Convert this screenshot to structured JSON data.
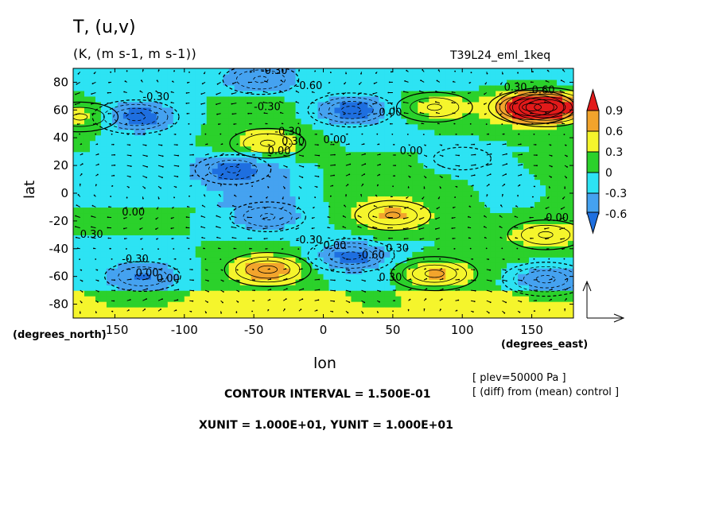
{
  "chart_data": {
    "type": "heatmap",
    "title": "T, (u,v)",
    "units": "(K, (m s-1, m s-1))",
    "run_name": "T39L24_eml_1keq",
    "xlabel": "lon",
    "ylabel": "lat",
    "x_units_label": "(degrees_east)",
    "y_units_label": "(degrees_north)",
    "xlim": [
      -180,
      180
    ],
    "ylim": [
      -90,
      90
    ],
    "x_ticks": [
      -150,
      -100,
      -50,
      0,
      50,
      100,
      150
    ],
    "y_ticks": [
      80,
      60,
      40,
      20,
      0,
      -20,
      -40,
      -60,
      -80
    ],
    "colorbar": {
      "labels": [
        "0.9",
        "0.6",
        "0.3",
        "0",
        "-0.3",
        "-0.6"
      ],
      "levels": [
        -0.9,
        -0.6,
        -0.3,
        0,
        0.3,
        0.6,
        0.9
      ],
      "colors": [
        "#1e6fe0",
        "#45a2f0",
        "#2de3f3",
        "#2bd12b",
        "#f5f52c",
        "#f2a42c",
        "#e21a1a"
      ]
    },
    "contour_labels": [
      "-0.30",
      "-0.60",
      "-0.30",
      "-0.30",
      "-0.30",
      "0.00",
      "0.30",
      "0.60",
      "0.00",
      "0.30",
      "0.00",
      "0.00",
      "0.00",
      "-0.30",
      "0.00",
      "0.00",
      "-0.30",
      "0.00",
      "-0.60",
      "0.30",
      "0.30",
      "0.00",
      "0.30"
    ],
    "anomaly_centers": [
      {
        "lon": -135,
        "lat": 55,
        "value": -0.6
      },
      {
        "lon": -45,
        "lat": 82,
        "value": -0.45
      },
      {
        "lon": 20,
        "lat": 60,
        "value": -0.6
      },
      {
        "lon": 160,
        "lat": 62,
        "value": 0.9
      },
      {
        "lon": 150,
        "lat": 62,
        "value": 0.6
      },
      {
        "lon": 80,
        "lat": 62,
        "value": 0.45
      },
      {
        "lon": -40,
        "lat": 36,
        "value": 0.45
      },
      {
        "lon": 50,
        "lat": -16,
        "value": 0.45
      },
      {
        "lon": -65,
        "lat": 17,
        "value": -0.45
      },
      {
        "lon": -40,
        "lat": -17,
        "value": -0.45
      },
      {
        "lon": -40,
        "lat": -55,
        "value": 0.6
      },
      {
        "lon": 20,
        "lat": -45,
        "value": -0.6
      },
      {
        "lon": 160,
        "lat": -62,
        "value": -0.6
      },
      {
        "lon": -130,
        "lat": -60,
        "value": -0.45
      },
      {
        "lon": 160,
        "lat": -30,
        "value": 0.45
      },
      {
        "lon": 80,
        "lat": -58,
        "value": 0.6
      },
      {
        "lon": 100,
        "lat": 25,
        "value": -0.3
      },
      {
        "lon": -175,
        "lat": 55,
        "value": 0.45
      }
    ],
    "vector_reference": "arrows showing (u,v) wind difference"
  },
  "annotations": {
    "plev": "[ plev=50000 Pa ]",
    "diff": "[ (diff) from (mean) control ]",
    "contour_interval": "CONTOUR INTERVAL = 1.500E-01",
    "xy_units": "XUNIT = 1.000E+01, YUNIT = 1.000E+01"
  }
}
